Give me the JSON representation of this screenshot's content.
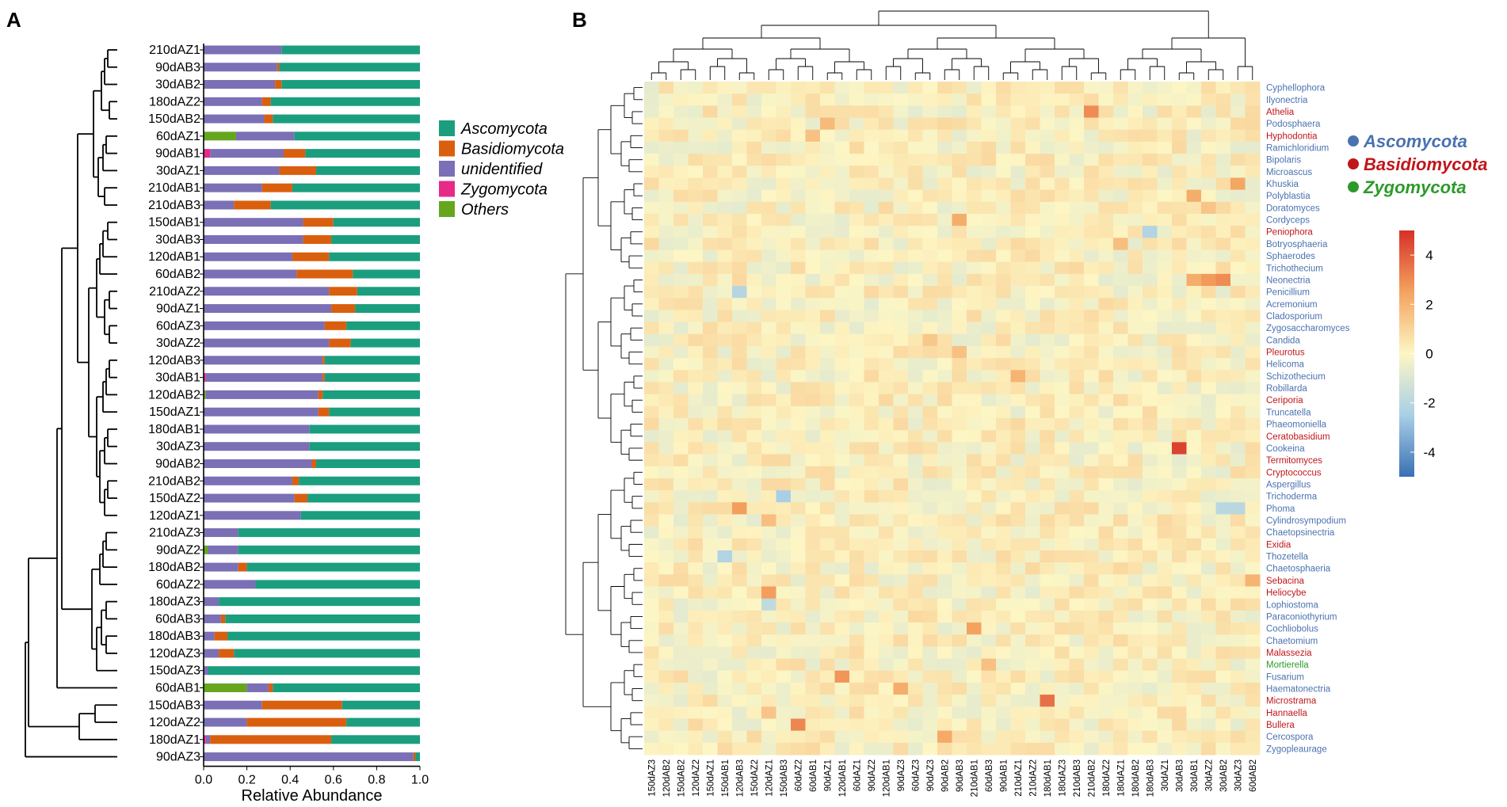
{
  "panel_labels": {
    "a": "A",
    "b": "B"
  },
  "colors": {
    "Ascomycota": "#1a9e7e",
    "Basidiomycota": "#d95f0e",
    "unidentified": "#7b6fb5",
    "Zygomycota": "#e7298a",
    "Others": "#66a61e",
    "asco_text": "#4a72b0",
    "basidio_text": "#c0161b",
    "zygo_text": "#2b9a2b"
  },
  "chart_data": [
    {
      "type": "bar",
      "orientation": "horizontal",
      "stacked": true,
      "panel": "A",
      "xlabel": "Relative Abundance",
      "xlim": [
        0,
        1
      ],
      "xticks": [
        "0.0",
        "0.2",
        "0.4",
        "0.6",
        "0.8",
        "1.0"
      ],
      "legend": [
        "Ascomycota",
        "Basidiomycota",
        "unidentified",
        "Zygomycota",
        "Others"
      ],
      "series_order": [
        "Others",
        "Zygomycota",
        "unidentified",
        "Basidiomycota",
        "Ascomycota"
      ],
      "categories": [
        "210dAZ1",
        "90dAB3",
        "30dAB2",
        "180dAZ2",
        "150dAB2",
        "60dAZ1",
        "90dAB1",
        "30dAZ1",
        "210dAB1",
        "210dAB3",
        "150dAB1",
        "30dAB3",
        "120dAB1",
        "60dAB2",
        "210dAZ2",
        "90dAZ1",
        "60dAZ3",
        "30dAZ2",
        "120dAB3",
        "30dAB1",
        "120dAB2",
        "150dAZ1",
        "180dAB1",
        "30dAZ3",
        "90dAB2",
        "210dAB2",
        "150dAZ2",
        "120dAZ1",
        "210dAZ3",
        "90dAZ2",
        "180dAB2",
        "60dAZ2",
        "180dAZ3",
        "60dAB3",
        "180dAB3",
        "120dAZ3",
        "150dAZ3",
        "60dAB1",
        "150dAB3",
        "120dAZ2",
        "180dAZ1",
        "90dAZ3"
      ],
      "series": [
        {
          "name": "Others",
          "values": [
            0,
            0,
            0,
            0,
            0,
            0.15,
            0,
            0,
            0,
            0,
            0,
            0,
            0,
            0,
            0,
            0,
            0,
            0,
            0,
            0,
            0.01,
            0,
            0,
            0,
            0,
            0,
            0,
            0,
            0,
            0.02,
            0,
            0,
            0,
            0,
            0,
            0,
            0,
            0.2,
            0,
            0,
            0,
            0
          ]
        },
        {
          "name": "Zygomycota",
          "values": [
            0,
            0,
            0,
            0,
            0,
            0,
            0.03,
            0,
            0,
            0,
            0,
            0,
            0,
            0,
            0,
            0,
            0,
            0,
            0,
            0.01,
            0,
            0,
            0,
            0,
            0,
            0,
            0,
            0,
            0,
            0,
            0,
            0,
            0,
            0,
            0,
            0,
            0,
            0,
            0,
            0,
            0.01,
            0
          ]
        },
        {
          "name": "unidentified",
          "values": [
            0.36,
            0.34,
            0.33,
            0.27,
            0.28,
            0.27,
            0.34,
            0.35,
            0.27,
            0.14,
            0.46,
            0.46,
            0.41,
            0.43,
            0.58,
            0.59,
            0.56,
            0.58,
            0.55,
            0.54,
            0.52,
            0.53,
            0.49,
            0.49,
            0.5,
            0.41,
            0.42,
            0.45,
            0.16,
            0.14,
            0.16,
            0.24,
            0.07,
            0.08,
            0.05,
            0.07,
            0.02,
            0.1,
            0.27,
            0.2,
            0.02,
            0.97
          ]
        },
        {
          "name": "Basidiomycota",
          "values": [
            0,
            0.01,
            0.03,
            0.04,
            0.04,
            0,
            0.1,
            0.17,
            0.14,
            0.17,
            0.14,
            0.13,
            0.17,
            0.26,
            0.13,
            0.11,
            0.1,
            0.1,
            0.01,
            0.01,
            0.02,
            0.05,
            0,
            0,
            0.02,
            0.03,
            0.06,
            0,
            0,
            0,
            0.04,
            0,
            0,
            0.02,
            0.06,
            0.07,
            0,
            0.02,
            0.37,
            0.46,
            0.56,
            0.01
          ]
        },
        {
          "name": "Ascomycota",
          "values": [
            0.64,
            0.65,
            0.64,
            0.69,
            0.68,
            0.58,
            0.53,
            0.48,
            0.59,
            0.69,
            0.4,
            0.41,
            0.42,
            0.31,
            0.29,
            0.3,
            0.34,
            0.32,
            0.44,
            0.44,
            0.45,
            0.42,
            0.51,
            0.51,
            0.48,
            0.56,
            0.52,
            0.55,
            0.84,
            0.84,
            0.8,
            0.76,
            0.93,
            0.9,
            0.89,
            0.86,
            0.98,
            0.68,
            0.36,
            0.34,
            0.41,
            0.02
          ]
        }
      ],
      "dendrogram": "hierarchical clustering of samples (left of bars)"
    },
    {
      "type": "heatmap",
      "panel": "B",
      "columns": [
        "150dAZ3",
        "120dAB2",
        "150dAB2",
        "120dAZ2",
        "150dAZ1",
        "150dAB1",
        "120dAB3",
        "150dAZ2",
        "120dAZ1",
        "150dAB3",
        "60dAZ2",
        "60dAB1",
        "90dAZ1",
        "120dAB1",
        "60dAZ1",
        "90dAZ2",
        "120dAB1",
        "90dAZ3",
        "60dAZ3",
        "90dAZ3",
        "90dAB2",
        "90dAB3",
        "210dAB1",
        "60dAB3",
        "90dAB1",
        "210dAZ1",
        "210dAZ2",
        "180dAB1",
        "180dAZ3",
        "210dAB3",
        "210dAB2",
        "180dAZ2",
        "180dAZ1",
        "180dAB2",
        "180dAB3",
        "30dAZ1",
        "30dAB3",
        "30dAB1",
        "30dAZ2",
        "30dAB2",
        "30dAZ3",
        "60dAB2"
      ],
      "rows": [
        "Cyphellophora",
        "Ilyonectria",
        "Athelia",
        "Podosphaera",
        "Hyphodontia",
        "Ramichloridium",
        "Bipolaris",
        "Microascus",
        "Khuskia",
        "Polyblastia",
        "Doratomyces",
        "Cordyceps",
        "Peniophora",
        "Botryosphaeria",
        "Sphaerodes",
        "Trichothecium",
        "Neonectria",
        "Penicillium",
        "Acremonium",
        "Cladosporium",
        "Zygosaccharomyces",
        "Candida",
        "Pleurotus",
        "Helicoma",
        "Schizothecium",
        "Robillarda",
        "Ceriporia",
        "Truncatella",
        "Phaeomoniella",
        "Ceratobasidium",
        "Cookeina",
        "Termitomyces",
        "Cryptococcus",
        "Aspergillus",
        "Trichoderma",
        "Phoma",
        "Cylindrosympodium",
        "Chaetopsinectria",
        "Exidia",
        "Thozetella",
        "Chaetosphaeria",
        "Sebacina",
        "Heliocybe",
        "Lophiostoma",
        "Paraconiothyrium",
        "Cochliobolus",
        "Chaetomium",
        "Malassezia",
        "Mortierella",
        "Fusarium",
        "Haematonectria",
        "Microstrama",
        "Hannaella",
        "Bullera",
        "Cercospora",
        "Zygopleaurage"
      ],
      "row_phylum": [
        "A",
        "A",
        "B",
        "A",
        "B",
        "A",
        "A",
        "A",
        "A",
        "A",
        "A",
        "A",
        "B",
        "A",
        "A",
        "A",
        "A",
        "A",
        "A",
        "A",
        "A",
        "A",
        "B",
        "A",
        "A",
        "A",
        "B",
        "A",
        "A",
        "B",
        "A",
        "B",
        "B",
        "A",
        "A",
        "A",
        "A",
        "A",
        "B",
        "A",
        "A",
        "B",
        "B",
        "A",
        "A",
        "A",
        "A",
        "B",
        "Z",
        "A",
        "A",
        "B",
        "B",
        "B",
        "A",
        "A"
      ],
      "colorbar": {
        "min": -5,
        "max": 5,
        "ticks": [
          "4",
          "2",
          "0",
          "-2",
          "-4"
        ]
      },
      "phylum_legend": [
        "Ascomycota",
        "Basidiomycota",
        "Zygomycota"
      ]
    }
  ]
}
